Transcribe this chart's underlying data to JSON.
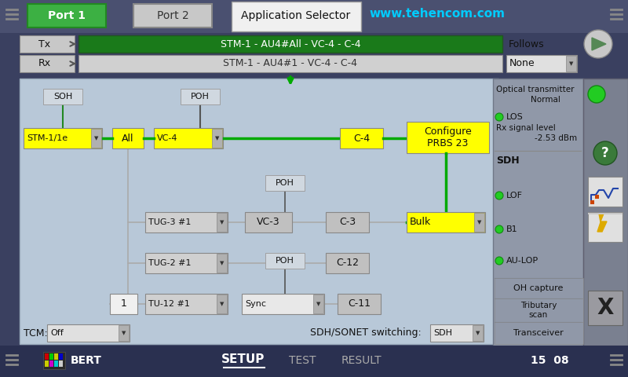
{
  "bg_color": "#3a4060",
  "top_bar_color": "#4a5070",
  "title_text": "Application Selector",
  "website_text": "www.tehencom.com",
  "website_color": "#00ccff",
  "port1_text": "Port 1",
  "port2_text": "Port 2",
  "port1_bg": "#3cb043",
  "port2_bg": "#c8c8c8",
  "tx_bar_text": "STM-1 - AU4#All - VC-4 - C-4",
  "tx_bar_color": "#1a7a1a",
  "rx_bar_text": "STM-1 - AU4#1 - VC-4 - C-4",
  "rx_bar_color": "#d0d0d0",
  "follows_text": "Follows",
  "none_text": "None",
  "main_area_color": "#b8c8d8",
  "right_panel_color": "#9098a8",
  "yellow_box_color": "#ffff00",
  "gray_box_color": "#c0c0c0",
  "white_box_color": "#f0f0f0",
  "green_line_color": "#00bb00",
  "bottom_bar_color": "#2a3050",
  "bottom_bar_text_color": "#ffffff",
  "status_items": [
    "LOF",
    "B1",
    "AU-LOP"
  ],
  "optical_text1": "Optical transmitter",
  "optical_text2": "Normal",
  "los_text": "LOS",
  "rx_signal_text1": "Rx signal level",
  "rx_signal_text2": "-2.53 dBm",
  "sdh_text": "SDH",
  "tcm_text": "TCM:",
  "tcm_val": "Off",
  "sdh_sonet_text": "SDH/SONET switching:",
  "sdh_sonet_val": "SDH",
  "time_text": "15  08"
}
